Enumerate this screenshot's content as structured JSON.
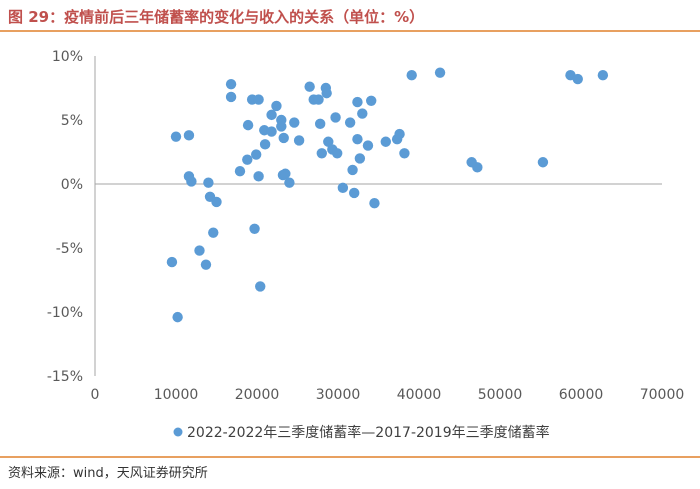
{
  "header": {
    "title": "图 29：疫情前后三年储蓄率的变化与收入的关系（单位：%）"
  },
  "footer": {
    "source": "资料来源：wind，天风证券研究所"
  },
  "colors": {
    "accent": "#c0504d",
    "rule": "#e8a060",
    "marker": "#5b9bd5",
    "axis": "#a6a6a6"
  },
  "chart_data": {
    "type": "scatter",
    "title": "",
    "xlabel": "",
    "ylabel": "",
    "xlim": [
      0,
      70000
    ],
    "ylim": [
      -15,
      10
    ],
    "x_ticks": [
      "0",
      "10000",
      "20000",
      "30000",
      "40000",
      "50000",
      "60000",
      "70000"
    ],
    "y_ticks": [
      "10%",
      "5%",
      "0%",
      "-5%",
      "-10%",
      "-15%"
    ],
    "grid": false,
    "legend_position": "bottom",
    "series": [
      {
        "name": "2022-2022年三季度储蓄率—2017-2019年三季度储蓄率",
        "points": [
          [
            9500,
            -6.1
          ],
          [
            10000,
            3.7
          ],
          [
            10200,
            -10.4
          ],
          [
            11600,
            3.8
          ],
          [
            11600,
            0.6
          ],
          [
            11900,
            0.2
          ],
          [
            12900,
            -5.2
          ],
          [
            13700,
            -6.3
          ],
          [
            14000,
            0.1
          ],
          [
            14200,
            -1.0
          ],
          [
            14600,
            -3.8
          ],
          [
            15000,
            -1.4
          ],
          [
            16800,
            7.8
          ],
          [
            16800,
            6.8
          ],
          [
            17900,
            1.0
          ],
          [
            18900,
            4.6
          ],
          [
            18800,
            1.9
          ],
          [
            19400,
            6.6
          ],
          [
            19700,
            -3.5
          ],
          [
            19900,
            2.3
          ],
          [
            20200,
            6.6
          ],
          [
            20200,
            0.6
          ],
          [
            20400,
            -8.0
          ],
          [
            20900,
            4.2
          ],
          [
            21000,
            3.1
          ],
          [
            21800,
            4.1
          ],
          [
            21800,
            5.4
          ],
          [
            22400,
            6.1
          ],
          [
            23000,
            5.0
          ],
          [
            23000,
            4.5
          ],
          [
            23300,
            3.6
          ],
          [
            23200,
            0.7
          ],
          [
            23500,
            0.8
          ],
          [
            24000,
            0.1
          ],
          [
            24600,
            4.8
          ],
          [
            25200,
            3.4
          ],
          [
            26500,
            7.6
          ],
          [
            27000,
            6.6
          ],
          [
            27600,
            6.6
          ],
          [
            27800,
            4.7
          ],
          [
            28000,
            2.4
          ],
          [
            28500,
            7.5
          ],
          [
            28600,
            7.1
          ],
          [
            28800,
            3.3
          ],
          [
            29300,
            2.7
          ],
          [
            29700,
            5.2
          ],
          [
            29900,
            2.4
          ],
          [
            30600,
            -0.3
          ],
          [
            31500,
            4.8
          ],
          [
            31800,
            1.1
          ],
          [
            32000,
            -0.7
          ],
          [
            32400,
            6.4
          ],
          [
            32400,
            3.5
          ],
          [
            32700,
            2.0
          ],
          [
            33000,
            5.5
          ],
          [
            33700,
            3.0
          ],
          [
            34100,
            6.5
          ],
          [
            34500,
            -1.5
          ],
          [
            35900,
            3.3
          ],
          [
            37300,
            3.5
          ],
          [
            37600,
            3.9
          ],
          [
            38200,
            2.4
          ],
          [
            39100,
            8.5
          ],
          [
            42600,
            8.7
          ],
          [
            46500,
            1.7
          ],
          [
            47200,
            1.3
          ],
          [
            55300,
            1.7
          ],
          [
            58700,
            8.5
          ],
          [
            59600,
            8.2
          ],
          [
            62700,
            8.5
          ]
        ]
      }
    ]
  }
}
